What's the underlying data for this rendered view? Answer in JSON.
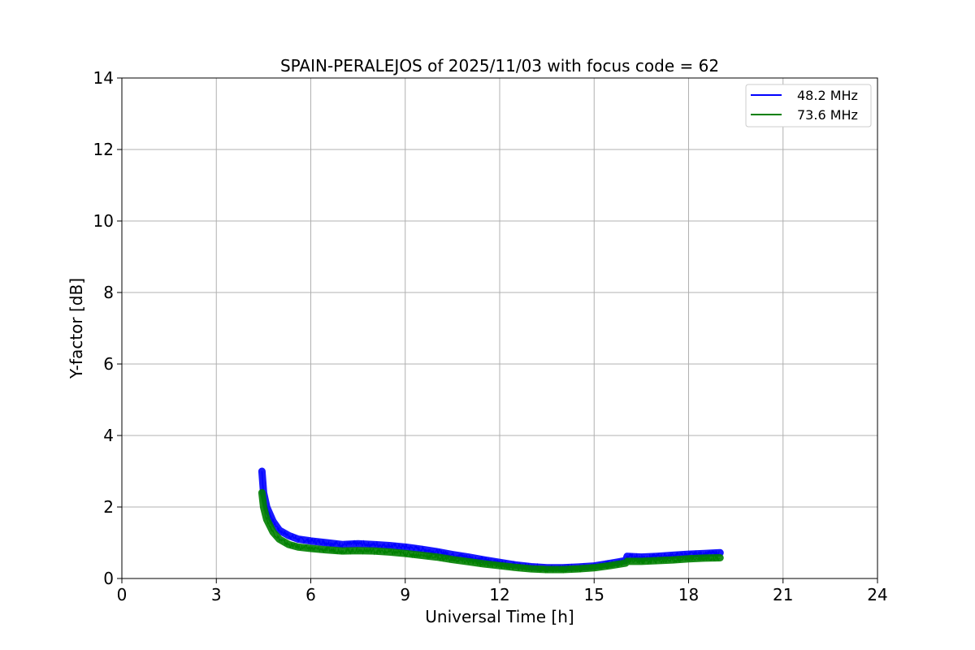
{
  "chart_data": {
    "type": "line",
    "title": "SPAIN-PERALEJOS of 2025/11/03 with focus code = 62",
    "xlabel": "Universal Time [h]",
    "ylabel": "Y-factor [dB]",
    "xlim": [
      0,
      24
    ],
    "ylim": [
      0,
      14
    ],
    "xticks": [
      0,
      3,
      6,
      9,
      12,
      15,
      18,
      21,
      24
    ],
    "yticks": [
      0,
      2,
      4,
      6,
      8,
      10,
      12,
      14
    ],
    "grid": true,
    "legend_position": "top-right",
    "series": [
      {
        "name": "48.2 MHz",
        "color": "#0000ff",
        "points": [
          [
            4.45,
            3.0
          ],
          [
            4.5,
            2.4
          ],
          [
            4.6,
            2.0
          ],
          [
            4.8,
            1.6
          ],
          [
            5.0,
            1.35
          ],
          [
            5.3,
            1.2
          ],
          [
            5.6,
            1.1
          ],
          [
            6.0,
            1.05
          ],
          [
            6.5,
            1.0
          ],
          [
            7.0,
            0.95
          ],
          [
            7.5,
            0.97
          ],
          [
            8.0,
            0.95
          ],
          [
            8.5,
            0.92
          ],
          [
            9.0,
            0.88
          ],
          [
            9.5,
            0.82
          ],
          [
            10.0,
            0.75
          ],
          [
            10.5,
            0.67
          ],
          [
            11.0,
            0.6
          ],
          [
            11.5,
            0.52
          ],
          [
            12.0,
            0.45
          ],
          [
            12.5,
            0.38
          ],
          [
            13.0,
            0.33
          ],
          [
            13.5,
            0.3
          ],
          [
            14.0,
            0.3
          ],
          [
            14.5,
            0.32
          ],
          [
            15.0,
            0.35
          ],
          [
            15.5,
            0.42
          ],
          [
            16.0,
            0.5
          ],
          [
            16.05,
            0.62
          ],
          [
            16.5,
            0.6
          ],
          [
            17.0,
            0.62
          ],
          [
            17.5,
            0.65
          ],
          [
            18.0,
            0.68
          ],
          [
            18.5,
            0.7
          ],
          [
            19.0,
            0.72
          ]
        ]
      },
      {
        "name": "73.6 MHz",
        "color": "#008000",
        "points": [
          [
            4.45,
            2.4
          ],
          [
            4.5,
            2.0
          ],
          [
            4.6,
            1.65
          ],
          [
            4.8,
            1.3
          ],
          [
            5.0,
            1.1
          ],
          [
            5.3,
            0.95
          ],
          [
            5.6,
            0.88
          ],
          [
            6.0,
            0.84
          ],
          [
            6.5,
            0.8
          ],
          [
            7.0,
            0.77
          ],
          [
            7.5,
            0.78
          ],
          [
            8.0,
            0.77
          ],
          [
            8.5,
            0.74
          ],
          [
            9.0,
            0.7
          ],
          [
            9.5,
            0.65
          ],
          [
            10.0,
            0.6
          ],
          [
            10.5,
            0.53
          ],
          [
            11.0,
            0.47
          ],
          [
            11.5,
            0.41
          ],
          [
            12.0,
            0.36
          ],
          [
            12.5,
            0.31
          ],
          [
            13.0,
            0.27
          ],
          [
            13.5,
            0.25
          ],
          [
            14.0,
            0.25
          ],
          [
            14.5,
            0.27
          ],
          [
            15.0,
            0.3
          ],
          [
            15.5,
            0.36
          ],
          [
            16.0,
            0.43
          ],
          [
            16.05,
            0.48
          ],
          [
            16.5,
            0.48
          ],
          [
            17.0,
            0.5
          ],
          [
            17.5,
            0.52
          ],
          [
            18.0,
            0.55
          ],
          [
            18.5,
            0.57
          ],
          [
            19.0,
            0.58
          ]
        ]
      }
    ]
  }
}
